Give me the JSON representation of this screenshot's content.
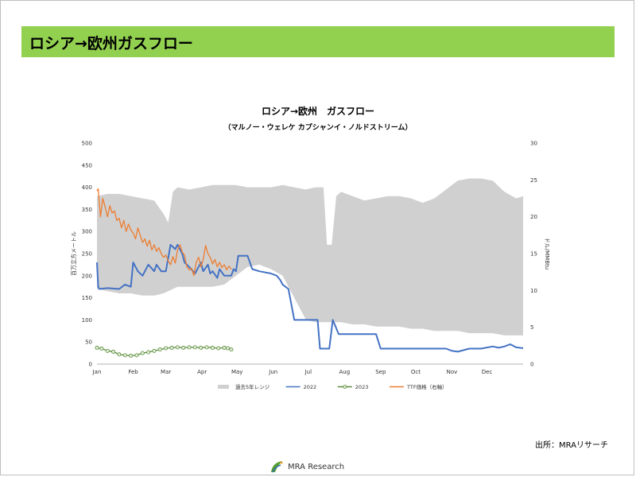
{
  "header": {
    "title": "ロシア→欧州ガスフロー"
  },
  "source_note": "出所：MRAリサーチ",
  "logo": {
    "text": "MRA Research"
  },
  "chart_data": {
    "type": "line",
    "title": "ロシア→欧州　ガスフロー",
    "subtitle": "（マルノー・ウェレケ カプシャンイ・ノルドストリーム）",
    "ylabel": "百万立方メートル",
    "y2label": "ドル/MMBtu",
    "ylim": [
      0,
      500
    ],
    "y2lim": [
      0,
      30
    ],
    "yticks": [
      0,
      50,
      100,
      150,
      200,
      250,
      300,
      350,
      400,
      450,
      500
    ],
    "y2ticks": [
      0,
      5,
      10,
      15,
      20,
      25,
      30
    ],
    "xlim": [
      1,
      366
    ],
    "xticks": [
      {
        "label": "Jan",
        "day": 1
      },
      {
        "label": "Feb",
        "day": 32
      },
      {
        "label": "Mar",
        "day": 60
      },
      {
        "label": "Apr",
        "day": 91
      },
      {
        "label": "May",
        "day": 121
      },
      {
        "label": "Jun",
        "day": 152
      },
      {
        "label": "Jul",
        "day": 182
      },
      {
        "label": "Aug",
        "day": 213
      },
      {
        "label": "Sep",
        "day": 244
      },
      {
        "label": "Oct",
        "day": 274
      },
      {
        "label": "Nov",
        "day": 305
      },
      {
        "label": "Dec",
        "day": 335
      }
    ],
    "legend": {
      "position": "bottom"
    },
    "series": [
      {
        "name": "過去5年レンジ",
        "kind": "range",
        "axis": "left",
        "color": "#d0d0d0",
        "x": [
          1,
          10,
          20,
          30,
          40,
          50,
          58,
          62,
          66,
          70,
          80,
          90,
          100,
          110,
          120,
          130,
          140,
          150,
          160,
          170,
          180,
          188,
          195,
          198,
          202,
          206,
          210,
          220,
          230,
          240,
          250,
          260,
          270,
          280,
          290,
          300,
          310,
          320,
          330,
          340,
          350,
          360,
          366
        ],
        "low": [
          170,
          165,
          160,
          160,
          155,
          155,
          160,
          165,
          170,
          175,
          175,
          175,
          175,
          180,
          200,
          220,
          225,
          215,
          200,
          150,
          100,
          95,
          95,
          95,
          95,
          95,
          95,
          90,
          90,
          85,
          85,
          85,
          80,
          80,
          75,
          75,
          75,
          70,
          70,
          70,
          65,
          65,
          65
        ],
        "high": [
          380,
          385,
          385,
          380,
          375,
          370,
          340,
          320,
          390,
          400,
          395,
          400,
          405,
          405,
          405,
          400,
          400,
          400,
          405,
          400,
          395,
          400,
          400,
          270,
          270,
          380,
          390,
          380,
          370,
          375,
          380,
          380,
          375,
          365,
          375,
          395,
          415,
          420,
          420,
          415,
          390,
          375,
          380
        ]
      },
      {
        "name": "2022",
        "kind": "line",
        "axis": "left",
        "color": "#4472c4",
        "x": [
          1,
          2,
          3,
          10,
          20,
          25,
          30,
          32,
          36,
          40,
          45,
          50,
          52,
          56,
          60,
          62,
          64,
          68,
          70,
          74,
          76,
          80,
          85,
          88,
          90,
          92,
          96,
          98,
          100,
          104,
          106,
          110,
          116,
          118,
          120,
          122,
          124,
          130,
          134,
          140,
          150,
          155,
          158,
          160,
          165,
          170,
          180,
          190,
          192,
          200,
          203,
          208,
          213,
          220,
          230,
          240,
          244,
          248,
          250,
          260,
          270,
          280,
          290,
          300,
          305,
          310,
          320,
          330,
          340,
          345,
          350,
          355,
          360,
          366
        ],
        "y": [
          230,
          175,
          170,
          172,
          170,
          180,
          175,
          230,
          210,
          200,
          225,
          210,
          225,
          210,
          210,
          240,
          270,
          260,
          270,
          250,
          230,
          220,
          205,
          220,
          230,
          210,
          225,
          205,
          210,
          195,
          215,
          200,
          200,
          215,
          210,
          245,
          245,
          245,
          215,
          210,
          205,
          200,
          190,
          180,
          170,
          100,
          100,
          100,
          35,
          35,
          100,
          68,
          68,
          68,
          68,
          68,
          35,
          35,
          35,
          35,
          35,
          35,
          35,
          35,
          30,
          28,
          35,
          35,
          40,
          37,
          40,
          45,
          38,
          36
        ]
      },
      {
        "name": "2023",
        "kind": "line-marker",
        "axis": "left",
        "color": "#5a8a3a",
        "x": [
          1,
          5,
          10,
          15,
          20,
          25,
          30,
          35,
          40,
          45,
          50,
          55,
          60,
          65,
          70,
          75,
          80,
          85,
          90,
          95,
          100,
          105,
          110,
          113,
          116
        ],
        "y": [
          37,
          35,
          30,
          28,
          22,
          20,
          19,
          20,
          25,
          27,
          30,
          33,
          36,
          37,
          38,
          37,
          38,
          38,
          37,
          38,
          37,
          36,
          37,
          36,
          33
        ]
      },
      {
        "name": "TTF価格（右軸）",
        "kind": "line",
        "axis": "right",
        "color": "#ed7d31",
        "x": [
          1,
          2,
          4,
          6,
          8,
          10,
          12,
          14,
          16,
          18,
          20,
          22,
          24,
          26,
          28,
          30,
          32,
          34,
          36,
          38,
          40,
          42,
          44,
          46,
          48,
          50,
          52,
          54,
          56,
          58,
          60,
          62,
          64,
          66,
          68,
          70,
          72,
          74,
          76,
          78,
          80,
          82,
          84,
          86,
          88,
          90,
          92,
          94,
          96,
          98,
          100,
          102,
          104,
          106,
          108,
          110,
          112,
          114,
          116
        ],
        "y": [
          23.5,
          23.8,
          20,
          22.5,
          21.3,
          20,
          21.5,
          20.5,
          20.8,
          19.5,
          19.8,
          18.5,
          19.5,
          18,
          19,
          18.2,
          17.8,
          17,
          18.5,
          17.5,
          16.5,
          17,
          16,
          16.8,
          15.5,
          16.2,
          15.3,
          15.8,
          15,
          14.5,
          14.8,
          14,
          13.5,
          14.6,
          13.7,
          15.5,
          16.2,
          15.2,
          14.8,
          13.2,
          12.8,
          13,
          12,
          13.8,
          14.5,
          13.2,
          14.2,
          16.1,
          15,
          14.5,
          13.6,
          14.2,
          13.2,
          13.8,
          13.1,
          13.5,
          12.8,
          13.3,
          12.9
        ]
      }
    ]
  }
}
